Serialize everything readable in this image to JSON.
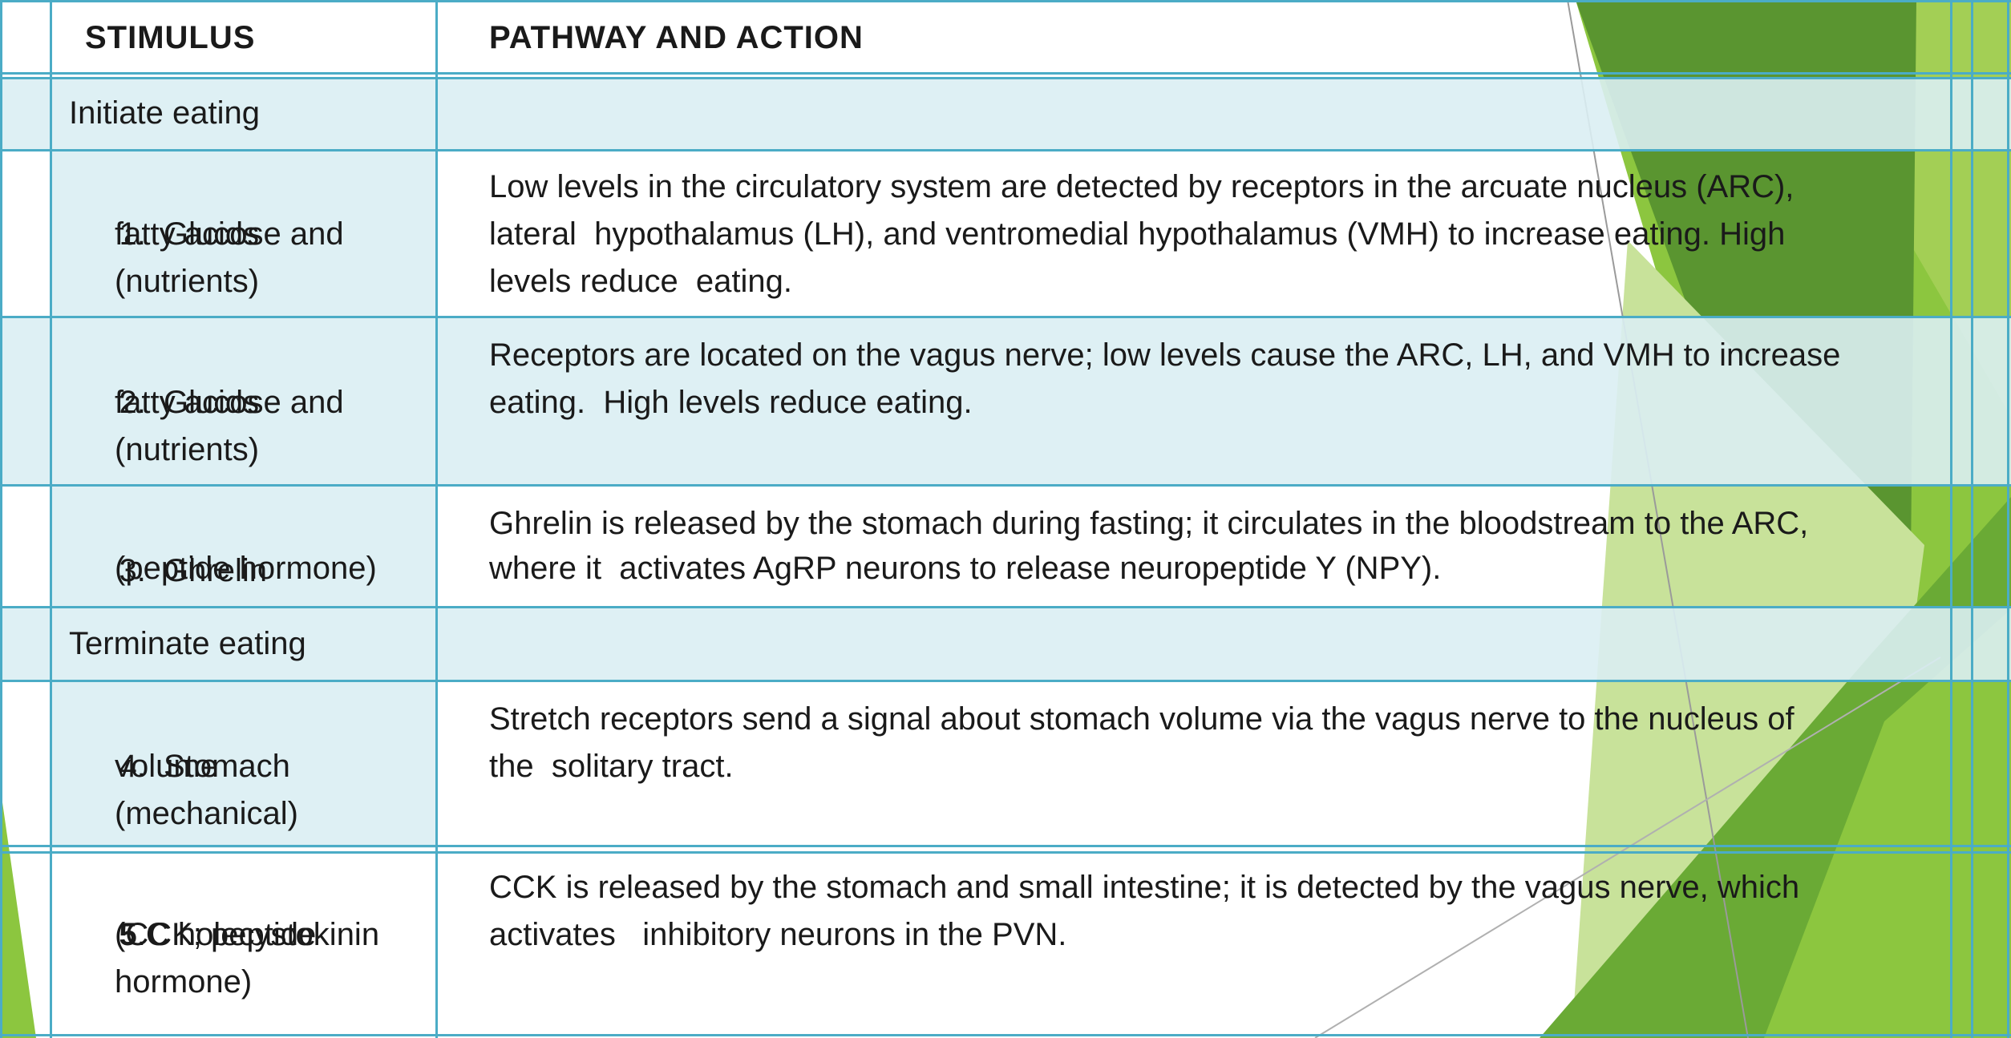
{
  "header": {
    "stimulus": "STIMULUS",
    "pathway": "PATHWAY AND ACTION"
  },
  "sections": {
    "initiate": "Initiate eating",
    "terminate": "Terminate eating"
  },
  "rows": [
    {
      "number": "1.",
      "stimulus_lines": [
        "Glucose and",
        "fatty acids",
        "(nutrients)"
      ],
      "action_lines": [
        "Low levels in the circulatory system are detected by receptors in the arcuate nucleus (ARC),",
        "lateral  hypothalamus (LH), and ventromedial hypothalamus (VMH) to increase eating. High",
        "levels reduce  eating."
      ]
    },
    {
      "number": "2.",
      "stimulus_lines": [
        "Glucose and",
        "fatty acids",
        "(nutrients)"
      ],
      "action_lines": [
        "Receptors are located on the vagus nerve; low levels cause the ARC, LH, and VMH to increase",
        "eating.  High levels reduce eating."
      ]
    },
    {
      "number": "3.",
      "stimulus_lines": [
        "Ghrelin",
        "(peptide hormone)"
      ],
      "action_lines": [
        "Ghrelin is released by the stomach during fasting; it circulates in the bloodstream to the ARC,",
        "where it  activates AgRP neurons to release neuropeptide Y (NPY)."
      ]
    },
    {
      "number": "4.",
      "stimulus_lines": [
        "Stomach",
        "volume",
        "(mechanical)"
      ],
      "action_lines": [
        "Stretch receptors send a signal about stomach volume via the vagus nerve to the nucleus of",
        "the  solitary tract."
      ]
    },
    {
      "number": "5",
      "stimulus_lines": [
        ".C holecystokinin",
        "(CCK; peptide",
        "hormone)"
      ],
      "action_lines": [
        "CCK is released by the stomach and small intestine; it is detected by the vagus nerve, which",
        "activates   inhibitory neurons in the PVN."
      ]
    }
  ],
  "colors": {
    "grid": "#4bacc6",
    "shaded": "#daeef3",
    "green_dark": "#4e8b2c",
    "green_mid": "#7ab829",
    "green_light": "#b5d96a",
    "green_pale": "#dcedc0"
  }
}
